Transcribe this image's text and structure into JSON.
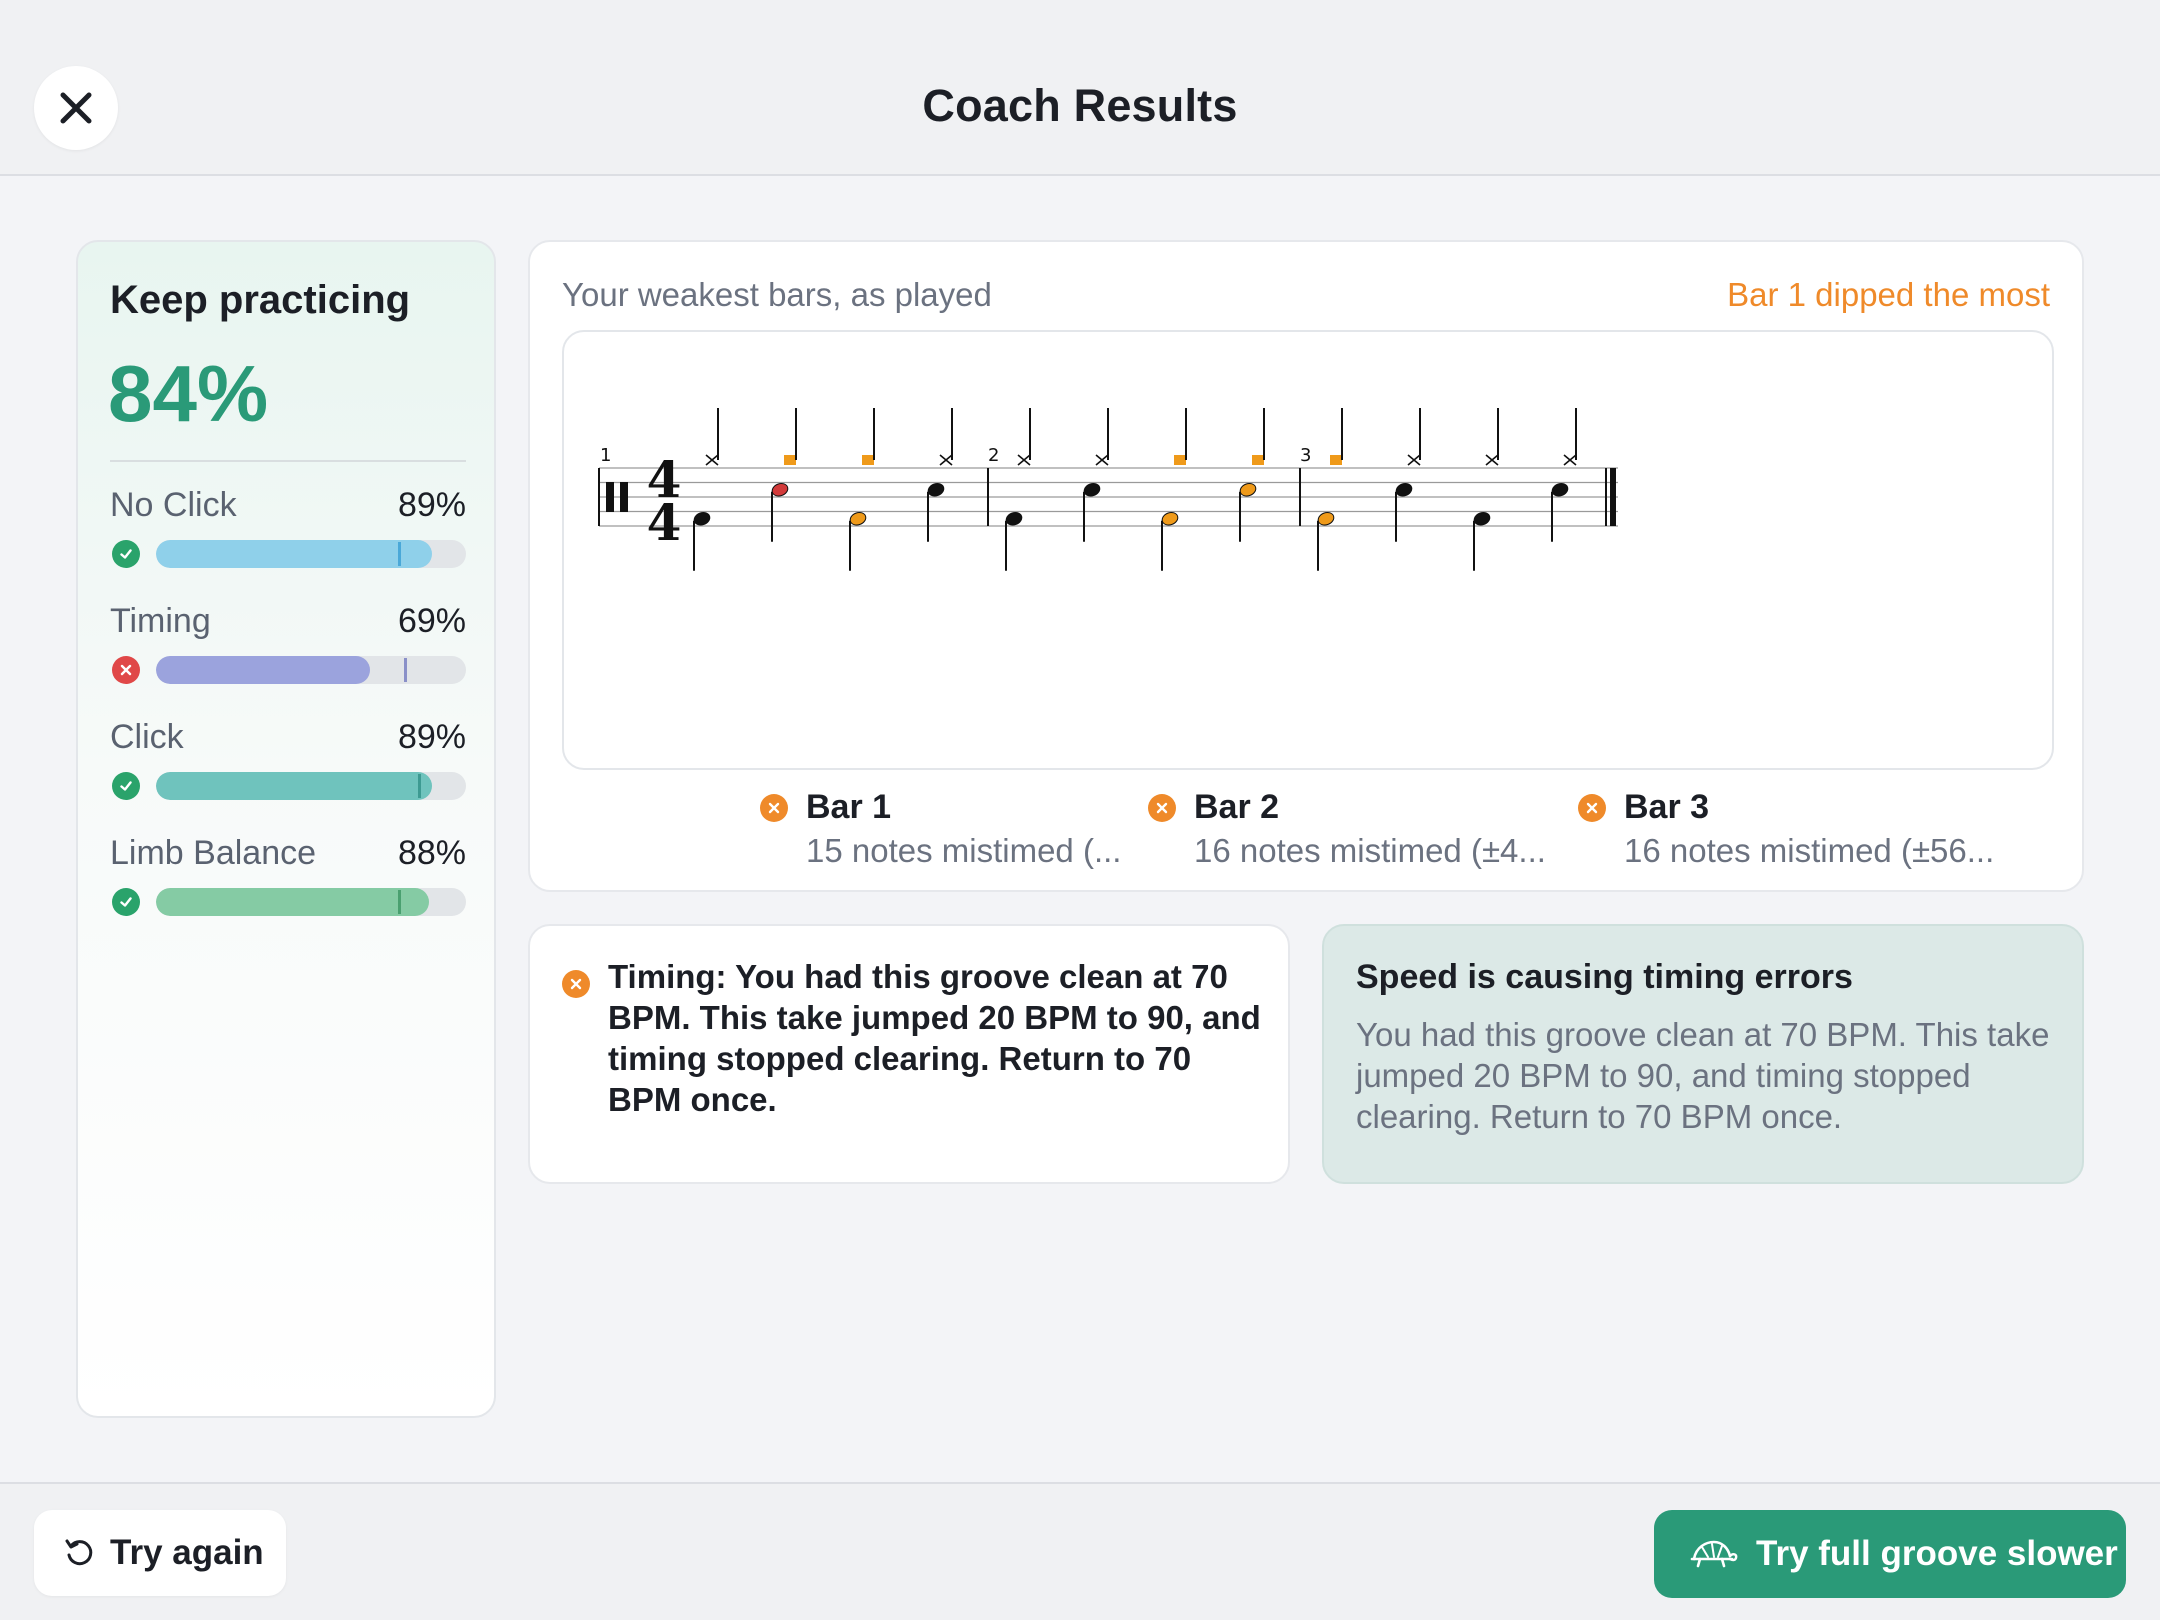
{
  "header": {
    "title": "Coach Results",
    "close_icon": "close-icon"
  },
  "score": {
    "label": "Keep practicing",
    "value": "84%",
    "metrics": [
      {
        "name": "No Click",
        "value": "89%",
        "level": 0.89,
        "status": "pass",
        "color": "#8fd0ea"
      },
      {
        "name": "Timing",
        "value": "69%",
        "level": 0.69,
        "status": "fail",
        "color": "#9ba3dd"
      },
      {
        "name": "Click",
        "value": "89%",
        "level": 0.89,
        "status": "pass",
        "color": "#6fc3bd"
      },
      {
        "name": "Limb Balance",
        "value": "88%",
        "level": 0.88,
        "status": "pass",
        "color": "#85cba4"
      }
    ]
  },
  "notation": {
    "heading": "Your weakest bars, as played",
    "highlight": "Bar 1 dipped the most",
    "time_signature": {
      "top": "4",
      "bottom": "4"
    },
    "bar_numbers": [
      "1",
      "2",
      "3"
    ],
    "bars": [
      {
        "title": "Bar 1",
        "detail": "15 notes mistimed (..."
      },
      {
        "title": "Bar 2",
        "detail": "16 notes mistimed (±4..."
      },
      {
        "title": "Bar 3",
        "detail": "16 notes mistimed (±56..."
      }
    ],
    "colors": {
      "late": "#ef9a1a",
      "worst": "#d23a3a",
      "ok": "#111111"
    }
  },
  "tip": {
    "text": "Timing: You had this groove clean at 70 BPM. This take jumped 20 BPM to 90, and timing stopped clearing. Return to 70 BPM once."
  },
  "insight": {
    "title": "Speed is causing timing errors",
    "body": "You had this groove clean at 70 BPM. This take jumped 20 BPM to 90, and timing stopped clearing. Return to 70 BPM once."
  },
  "footer": {
    "try_again_label": "Try again",
    "try_again_icon": "rotate-ccw-icon",
    "slower_label": "Try full groove slower",
    "slower_icon": "turtle-icon"
  },
  "colors": {
    "accent": "#2a9a78",
    "warning": "#ef8a2a",
    "error": "#e04848",
    "pass": "#2aa36b"
  }
}
